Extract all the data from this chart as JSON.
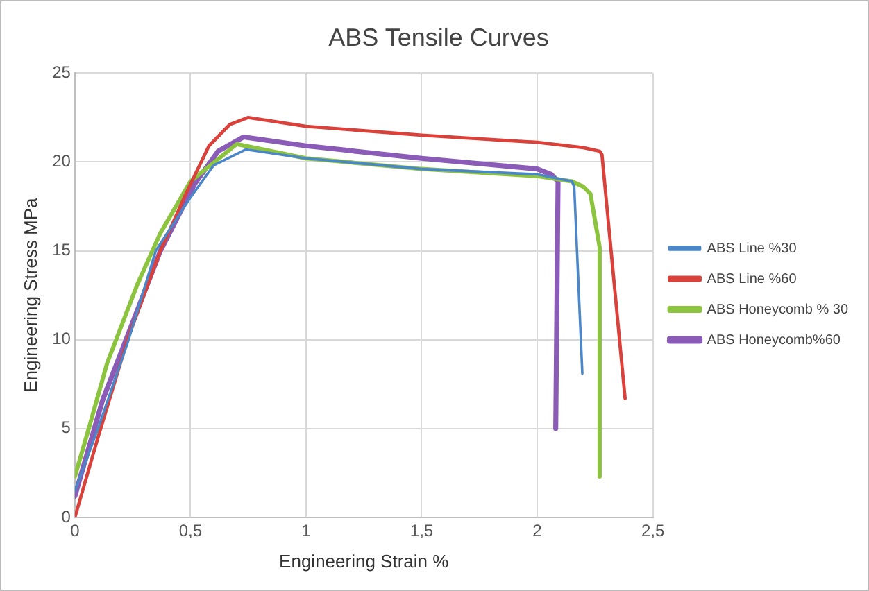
{
  "chart_data": {
    "type": "line",
    "title": "ABS Tensile Curves",
    "xlabel": "Engineering Strain %",
    "ylabel": "Engineering Stress MPa",
    "xlim": [
      0,
      2.5
    ],
    "xticks": [
      0,
      {
        "value": 0.5,
        "label": "0,5"
      },
      1,
      {
        "value": 1.5,
        "label": "1,5"
      },
      2,
      {
        "value": 2.5,
        "label": "2,5"
      }
    ],
    "ylim": [
      0,
      25
    ],
    "yticks": [
      0,
      5,
      10,
      15,
      20,
      25
    ],
    "grid": true,
    "legend": "right",
    "marker": "none",
    "line_style": "solid",
    "series": [
      {
        "name": "ABS Line %30",
        "color": "#4a86c8",
        "x": [
          0,
          0.1,
          0.23,
          0.35,
          0.5,
          0.6,
          0.74,
          1,
          1.5,
          2,
          2.15,
          2.16,
          2.195
        ],
        "values": [
          1.5,
          5,
          9.9,
          15,
          18,
          19.8,
          20.7,
          20.2,
          19.6,
          19.3,
          18.9,
          18.6,
          8.1
        ]
      },
      {
        "name": "ABS Line %60",
        "color": "#d9413a",
        "x": [
          0,
          0.1,
          0.23,
          0.37,
          0.48,
          0.58,
          0.67,
          0.75,
          1,
          1.5,
          2,
          2.2,
          2.27,
          2.28,
          2.38
        ],
        "values": [
          0,
          4.5,
          10.1,
          15,
          18.2,
          20.9,
          22.1,
          22.5,
          22,
          21.5,
          21.1,
          20.8,
          20.6,
          20.4,
          6.7
        ]
      },
      {
        "name": "ABS Honeycomb % 30",
        "color": "#8cc43f",
        "x": [
          0,
          0.06,
          0.14,
          0.27,
          0.37,
          0.5,
          0.7,
          1,
          1.5,
          2,
          2.15,
          2.2,
          2.23,
          2.27,
          2.27
        ],
        "values": [
          2.3,
          5,
          8.7,
          13.1,
          16,
          18.9,
          21,
          20.2,
          19.6,
          19.2,
          18.9,
          18.6,
          18.2,
          15.2,
          2.3
        ]
      },
      {
        "name": "ABS Honeycomb%60",
        "color": "#8a5cb8",
        "x": [
          0,
          0.12,
          0.37,
          0.52,
          0.62,
          0.73,
          1,
          1.5,
          2,
          2.06,
          2.09,
          2.08
        ],
        "values": [
          1.2,
          6.6,
          15,
          18.8,
          20.6,
          21.4,
          20.9,
          20.2,
          19.6,
          19.3,
          18.9,
          5
        ]
      }
    ]
  }
}
